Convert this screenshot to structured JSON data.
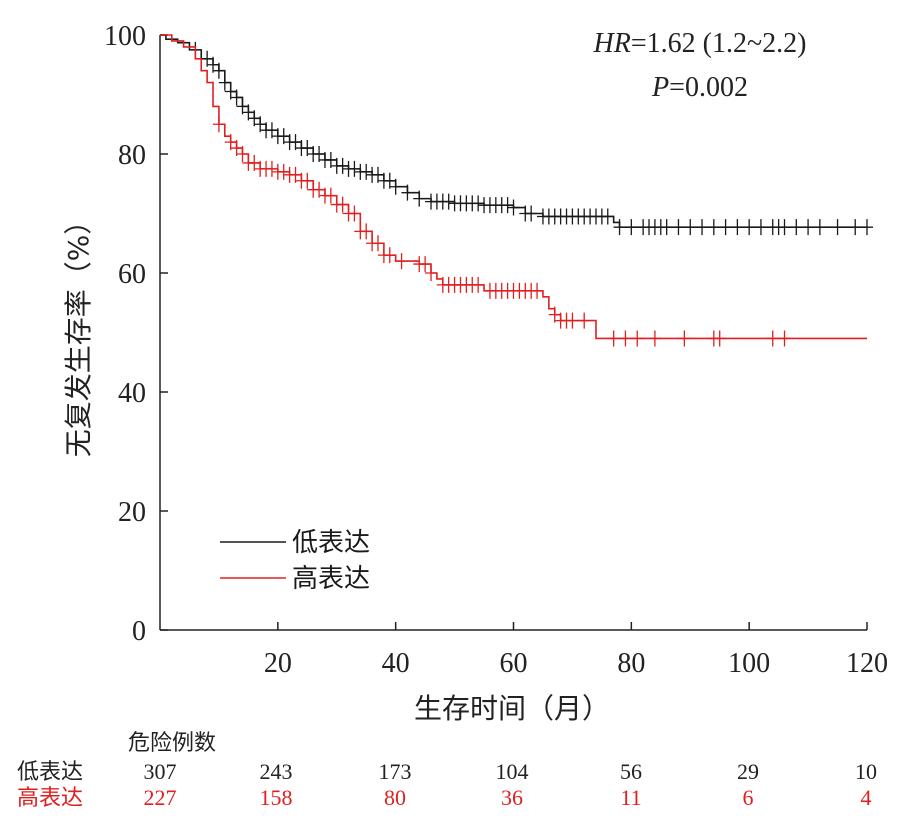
{
  "colors": {
    "low": "#1a1a1a",
    "high": "#e02020",
    "axis": "#222222"
  },
  "chart_data": {
    "type": "line",
    "subtype": "kaplan-meier",
    "xlabel": "生存时间（月）",
    "ylabel": "无复发生存率（%）",
    "xlim": [
      0,
      120
    ],
    "ylim": [
      0,
      100
    ],
    "x_ticks": [
      20,
      40,
      60,
      80,
      100,
      120
    ],
    "y_ticks": [
      0,
      20,
      40,
      60,
      80,
      100
    ],
    "annotation": {
      "hr_label": "HR",
      "hr_value": "=1.62 (1.2~2.2)",
      "p_label": "P",
      "p_value": "=0.002"
    },
    "legend": [
      {
        "key": "low",
        "label": "低表达"
      },
      {
        "key": "high",
        "label": "高表达"
      }
    ],
    "series": [
      {
        "name": "低表达",
        "key": "low",
        "steps": [
          [
            0,
            100
          ],
          [
            1,
            99.3
          ],
          [
            3,
            98.7
          ],
          [
            5,
            97.5
          ],
          [
            7,
            96
          ],
          [
            9,
            95
          ],
          [
            10,
            94
          ],
          [
            11,
            92
          ],
          [
            12,
            90.5
          ],
          [
            13,
            89.5
          ],
          [
            14,
            88
          ],
          [
            15,
            87
          ],
          [
            16,
            86
          ],
          [
            17,
            85
          ],
          [
            18,
            84
          ],
          [
            20,
            83
          ],
          [
            22,
            82
          ],
          [
            24,
            81
          ],
          [
            26,
            80
          ],
          [
            28,
            79
          ],
          [
            30,
            78
          ],
          [
            32,
            77.5
          ],
          [
            34,
            77
          ],
          [
            36,
            76.5
          ],
          [
            38,
            75.5
          ],
          [
            40,
            74.5
          ],
          [
            42,
            73.5
          ],
          [
            44,
            72.5
          ],
          [
            46,
            72
          ],
          [
            50,
            71.7
          ],
          [
            55,
            71.4
          ],
          [
            60,
            71
          ],
          [
            62,
            70
          ],
          [
            65,
            69.5
          ],
          [
            72,
            69.5
          ],
          [
            77,
            68.5
          ],
          [
            78,
            67.7
          ],
          [
            120,
            67.7
          ]
        ],
        "censored": [
          6,
          7,
          8,
          9,
          10,
          11,
          12,
          13,
          14,
          15,
          16,
          17,
          18,
          19,
          20,
          21,
          22,
          23,
          24,
          25,
          26,
          27,
          28,
          29,
          30,
          31,
          32,
          33,
          34,
          35,
          36,
          37,
          38,
          39,
          40,
          42,
          44,
          46,
          47,
          48,
          49,
          50,
          51,
          52,
          53,
          54,
          55,
          56,
          57,
          58,
          59,
          60,
          62,
          63,
          65,
          66,
          67,
          68,
          69,
          70,
          71,
          72,
          73,
          74,
          75,
          76,
          78,
          80,
          82,
          83,
          84,
          85,
          86,
          88,
          90,
          92,
          94,
          96,
          98,
          100,
          102,
          104,
          105,
          106,
          108,
          110,
          112,
          115,
          118,
          120
        ]
      },
      {
        "name": "高表达",
        "key": "high",
        "steps": [
          [
            0,
            100
          ],
          [
            2,
            99
          ],
          [
            4,
            98
          ],
          [
            6,
            96
          ],
          [
            7,
            94
          ],
          [
            8,
            92
          ],
          [
            9,
            88
          ],
          [
            10,
            85
          ],
          [
            11,
            83
          ],
          [
            12,
            82
          ],
          [
            13,
            81
          ],
          [
            14,
            80
          ],
          [
            15,
            78.5
          ],
          [
            17,
            77.5
          ],
          [
            20,
            77
          ],
          [
            22,
            76.5
          ],
          [
            24,
            75.5
          ],
          [
            26,
            74
          ],
          [
            28,
            73
          ],
          [
            30,
            71.5
          ],
          [
            32,
            70
          ],
          [
            34,
            67
          ],
          [
            36,
            65
          ],
          [
            38,
            63
          ],
          [
            40,
            62
          ],
          [
            44,
            61.5
          ],
          [
            46,
            60
          ],
          [
            47,
            59
          ],
          [
            48,
            58
          ],
          [
            52,
            58
          ],
          [
            55,
            57
          ],
          [
            58,
            57
          ],
          [
            63,
            57
          ],
          [
            65,
            56
          ],
          [
            66,
            54
          ],
          [
            67,
            53
          ],
          [
            68,
            52
          ],
          [
            71,
            52
          ],
          [
            74,
            49
          ],
          [
            120,
            49
          ]
        ],
        "censored": [
          10,
          12,
          13,
          14,
          15,
          16,
          17,
          18,
          19,
          20,
          21,
          22,
          23,
          24,
          25,
          26,
          27,
          28,
          29,
          30,
          31,
          32,
          33,
          34,
          35,
          36,
          37,
          38,
          39,
          41,
          44,
          45,
          46,
          48,
          49,
          50,
          51,
          52,
          53,
          54,
          56,
          57,
          58,
          59,
          60,
          61,
          62,
          63,
          64,
          67,
          68,
          69,
          70,
          72,
          77,
          79,
          81,
          84,
          89,
          94,
          95,
          104,
          106
        ]
      }
    ],
    "risk_table": {
      "title": "危险例数",
      "times": [
        0,
        20,
        40,
        60,
        80,
        100,
        120
      ],
      "rows": [
        {
          "key": "low",
          "label": "低表达",
          "counts": [
            "307",
            "243",
            "173",
            "104",
            "56",
            "29",
            "10"
          ]
        },
        {
          "key": "high",
          "label": "高表达",
          "counts": [
            "227",
            "158",
            "80",
            "36",
            "11",
            "6",
            "4"
          ]
        }
      ]
    }
  }
}
